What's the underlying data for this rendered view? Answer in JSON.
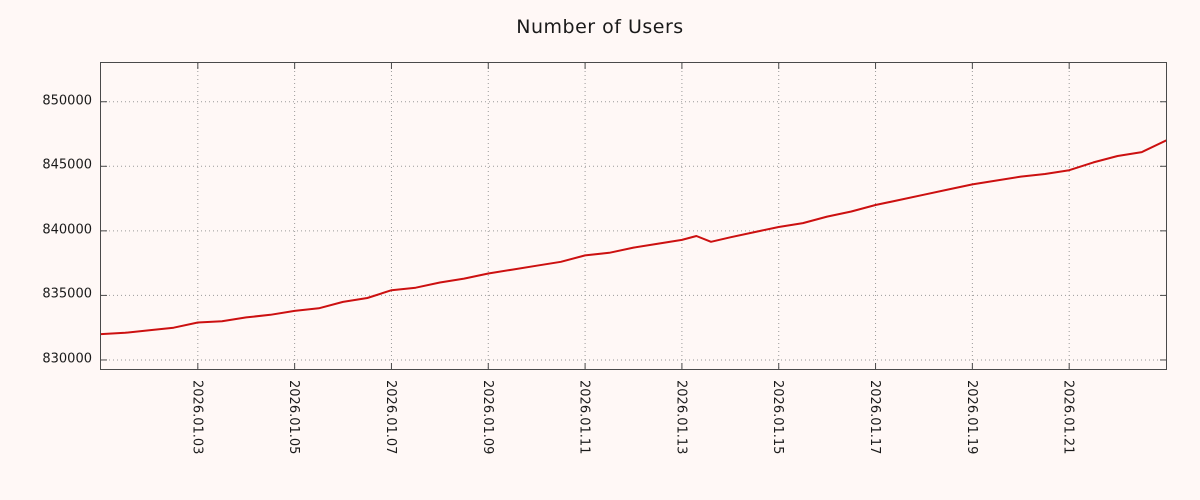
{
  "page": {
    "background_color": "#fff8f6"
  },
  "chart_data": {
    "type": "line",
    "title": "Number of Users",
    "xlabel": "",
    "ylabel": "",
    "grid": "dotted",
    "legend_position": "none",
    "line_color": "#cc1010",
    "grid_color": "#9a9a9a",
    "xlim": [
      1,
      23
    ],
    "ylim": [
      829300,
      853000
    ],
    "x_ticks": [
      {
        "value": 3,
        "label": "2026.01.03"
      },
      {
        "value": 5,
        "label": "2026.01.05"
      },
      {
        "value": 7,
        "label": "2026.01.07"
      },
      {
        "value": 9,
        "label": "2026.01.09"
      },
      {
        "value": 11,
        "label": "2026.01.11"
      },
      {
        "value": 13,
        "label": "2026.01.13"
      },
      {
        "value": 15,
        "label": "2026.01.15"
      },
      {
        "value": 17,
        "label": "2026.01.17"
      },
      {
        "value": 19,
        "label": "2026.01.19"
      },
      {
        "value": 21,
        "label": "2026.01.21"
      }
    ],
    "y_ticks": [
      {
        "value": 830000,
        "label": "830000"
      },
      {
        "value": 835000,
        "label": "835000"
      },
      {
        "value": 840000,
        "label": "840000"
      },
      {
        "value": 845000,
        "label": "845000"
      },
      {
        "value": 850000,
        "label": "850000"
      }
    ],
    "series": [
      {
        "name": "users",
        "x": [
          1,
          1.5,
          2,
          2.5,
          3,
          3.5,
          4,
          4.5,
          5,
          5.5,
          6,
          6.5,
          7,
          7.5,
          8,
          8.5,
          9,
          9.5,
          10,
          10.5,
          11,
          11.5,
          12,
          12.5,
          13,
          13.3,
          13.6,
          14,
          14.5,
          15,
          15.5,
          16,
          16.5,
          17,
          17.5,
          18,
          18.5,
          19,
          19.5,
          20,
          20.5,
          21,
          21.5,
          22,
          22.5,
          23
        ],
        "values": [
          832000,
          832100,
          832300,
          832500,
          832900,
          833000,
          833300,
          833500,
          833800,
          834000,
          834500,
          834800,
          835400,
          835600,
          836000,
          836300,
          836700,
          837000,
          837300,
          837600,
          838100,
          838300,
          838700,
          839000,
          839300,
          839600,
          839150,
          839500,
          839900,
          840300,
          840600,
          841100,
          841500,
          842000,
          842400,
          842800,
          843200,
          843600,
          843900,
          844200,
          844400,
          844700,
          845300,
          845800,
          846100,
          847000
        ]
      }
    ]
  }
}
